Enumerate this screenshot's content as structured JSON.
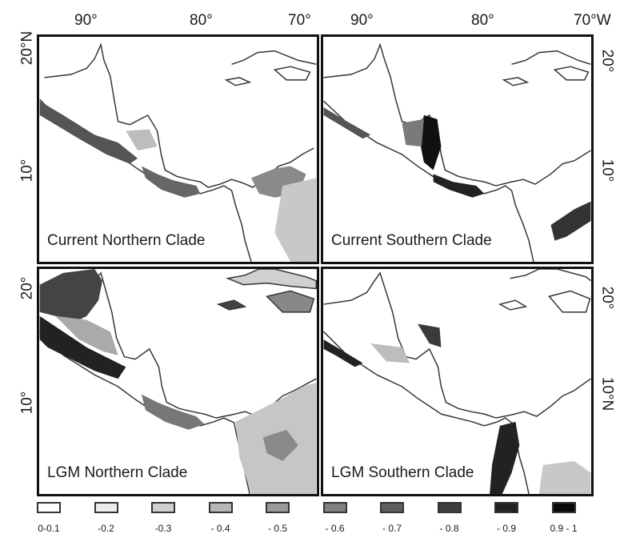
{
  "axes": {
    "top_lon": [
      "90°",
      "80°",
      "70°",
      "90°",
      "80°",
      "70°W"
    ],
    "left_lat": [
      "20°N",
      "10°",
      "20°",
      "10°"
    ],
    "right_lat": [
      "20°",
      "10°",
      "20°",
      "10°N"
    ]
  },
  "panels": [
    {
      "title": "Current Northern Clade"
    },
    {
      "title": "Current Southern Clade"
    },
    {
      "title": "LGM Northern Clade"
    },
    {
      "title": "LGM Southern Clade"
    }
  ],
  "legend": {
    "items": [
      {
        "label": "0-0.1",
        "color": "#ffffff"
      },
      {
        "label": "-0.2",
        "color": "#ececec"
      },
      {
        "label": "-0.3",
        "color": "#d0d0d0"
      },
      {
        "label": "- 0.4",
        "color": "#b6b6b6"
      },
      {
        "label": "- 0.5",
        "color": "#9a9a9a"
      },
      {
        "label": "- 0.6",
        "color": "#808080"
      },
      {
        "label": "- 0.7",
        "color": "#5e5e5e"
      },
      {
        "label": "- 0.8",
        "color": "#3e3e3e"
      },
      {
        "label": "- 0.9",
        "color": "#222222"
      },
      {
        "label": "0.9 - 1",
        "color": "#0a0a0a"
      }
    ]
  }
}
